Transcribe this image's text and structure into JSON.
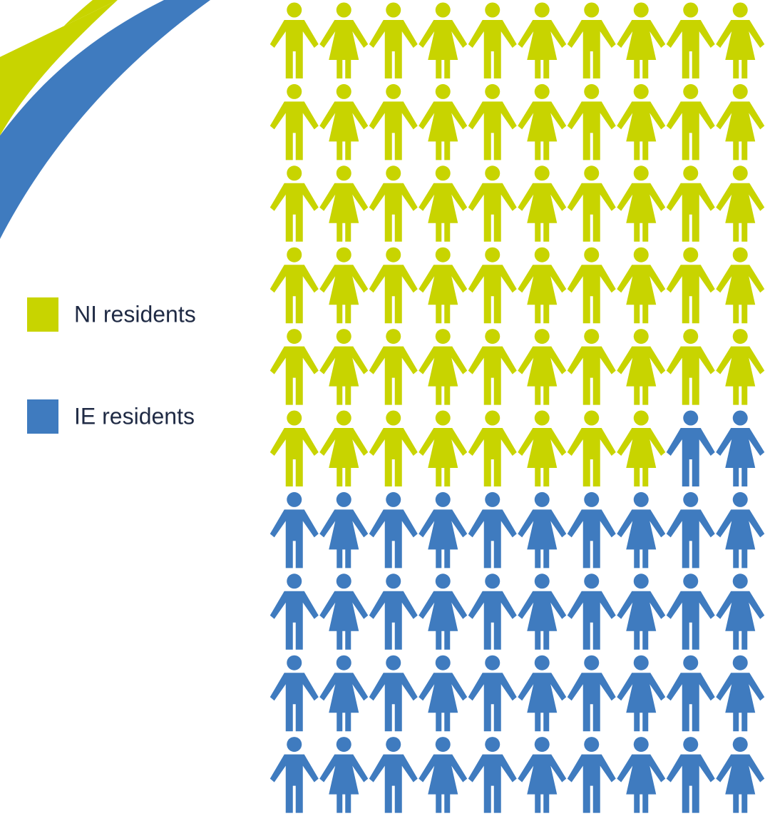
{
  "chart_data": {
    "type": "pictogram",
    "series": [
      {
        "name": "NI residents",
        "color": "#c8d400",
        "values": [
          58
        ]
      },
      {
        "name": "IE residents",
        "color": "#3f7bbf",
        "values": [
          42
        ]
      }
    ]
  }
}
